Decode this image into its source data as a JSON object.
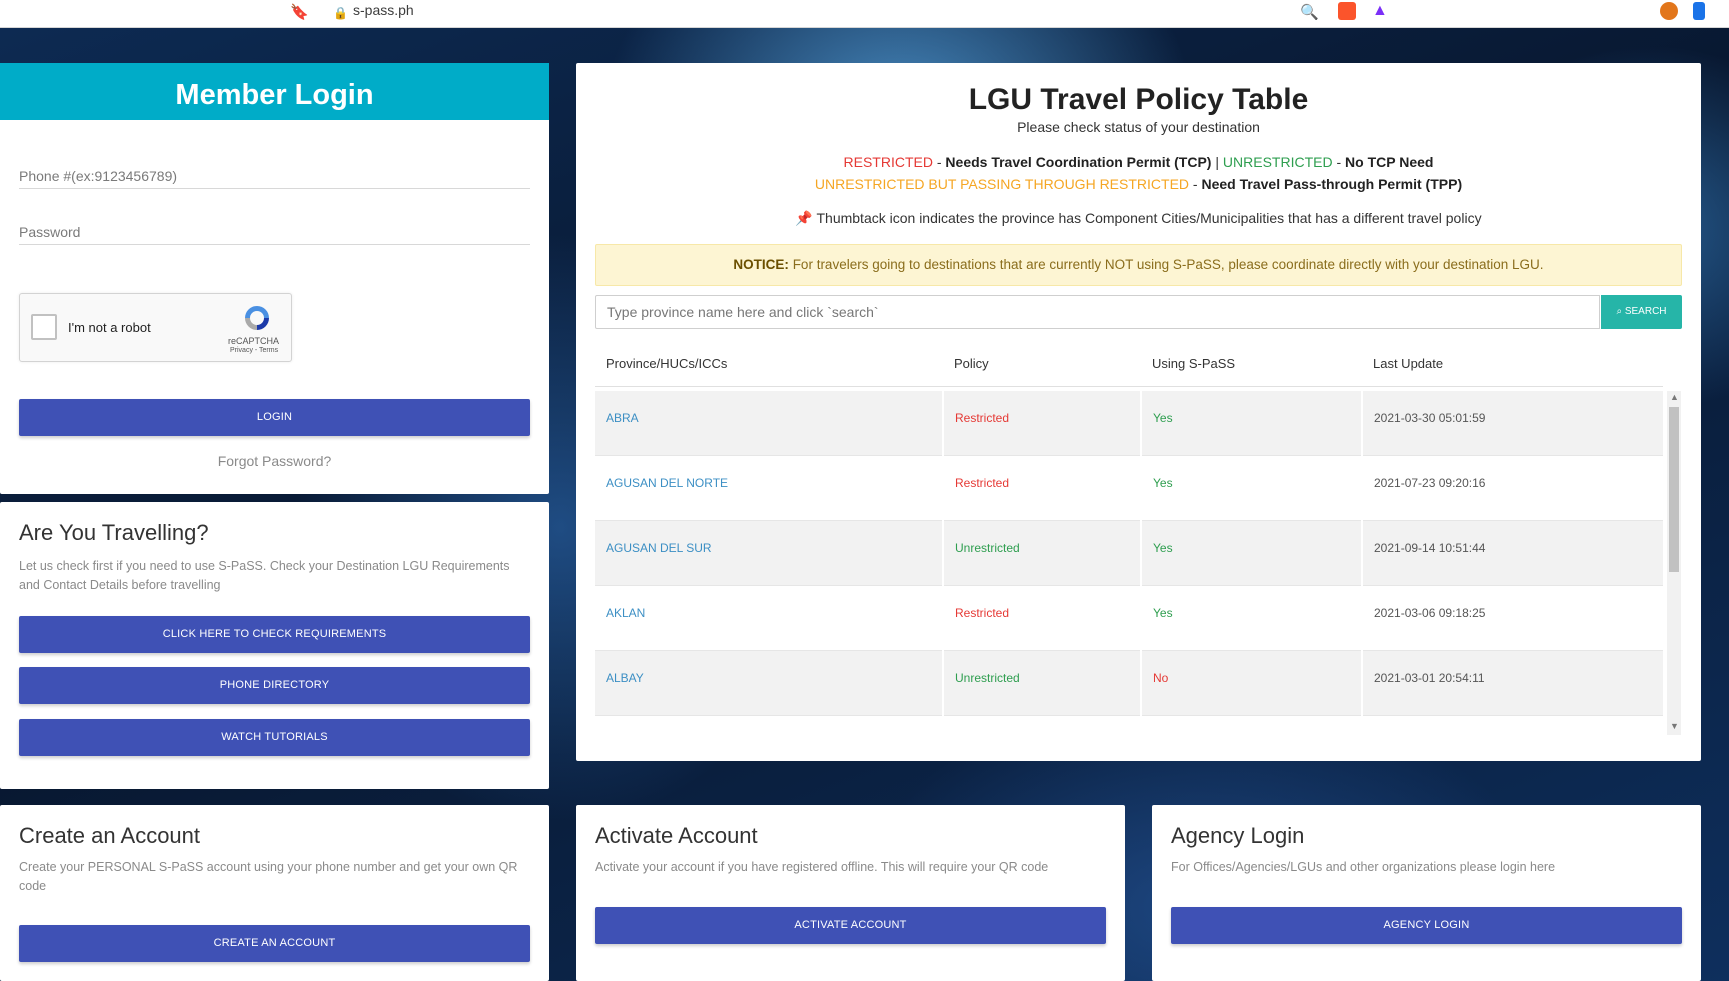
{
  "browser": {
    "url": "s-pass.ph"
  },
  "login": {
    "title": "Member Login",
    "phone_placeholder": "Phone #(ex:9123456789)",
    "password_placeholder": "Password",
    "recaptcha_label": "I'm not a robot",
    "recaptcha_brand": "reCAPTCHA",
    "recaptcha_terms": "Privacy - Terms",
    "login_button": "LOGIN",
    "forgot_password": "Forgot Password?"
  },
  "travel": {
    "title": "Are You Travelling?",
    "text": "Let us check first if you need to use S-PaSS. Check your Destination LGU Requirements and Contact Details before travelling",
    "check_button": "CLICK HERE TO CHECK REQUIREMENTS",
    "phone_button": "PHONE DIRECTORY",
    "tutorials_button": "WATCH TUTORIALS"
  },
  "create": {
    "title": "Create an Account",
    "text": "Create your PERSONAL S-PaSS account using your phone number and get your own QR code",
    "button": "CREATE AN ACCOUNT"
  },
  "activate": {
    "title": "Activate Account",
    "text": "Activate your account if you have registered offline. This will require your QR code",
    "button": "ACTIVATE ACCOUNT"
  },
  "agency": {
    "title": "Agency Login",
    "text": "For Offices/Agencies/LGUs and other organizations please login here",
    "button": "AGENCY LOGIN"
  },
  "policy": {
    "title": "LGU Travel Policy Table",
    "subtitle": "Please check status of your destination",
    "legend_restricted": "RESTRICTED",
    "legend_restricted_desc": "Needs Travel Coordination Permit (TCP)",
    "legend_separator": "|",
    "legend_unrestricted": "UNRESTRICTED",
    "legend_unrestricted_desc": "No TCP Need",
    "legend_passing": "UNRESTRICTED BUT PASSING THROUGH RESTRICTED",
    "legend_passing_desc": "Need Travel Pass-through Permit (TPP)",
    "legend_dash": "-",
    "thumbtack_note": "Thumbtack icon indicates the province has Component Cities/Municipalities that has a different travel policy",
    "notice_label": "NOTICE:",
    "notice_text": "For travelers going to destinations that are currently NOT using S-PaSS, please coordinate directly with your destination LGU.",
    "search_placeholder": "Type province name here and click `search`",
    "search_button": "SEARCH",
    "columns": [
      "Province/HUCs/ICCs",
      "Policy",
      "Using S-PaSS",
      "Last Update"
    ],
    "rows": [
      {
        "province": "ABRA",
        "policy": "Restricted",
        "using": "Yes",
        "updated": "2021-03-30 05:01:59"
      },
      {
        "province": "AGUSAN DEL NORTE",
        "policy": "Restricted",
        "using": "Yes",
        "updated": "2021-07-23 09:20:16"
      },
      {
        "province": "AGUSAN DEL SUR",
        "policy": "Unrestricted",
        "using": "Yes",
        "updated": "2021-09-14 10:51:44"
      },
      {
        "province": "AKLAN",
        "policy": "Restricted",
        "using": "Yes",
        "updated": "2021-03-06 09:18:25"
      },
      {
        "province": "ALBAY",
        "policy": "Unrestricted",
        "using": "No",
        "updated": "2021-03-01 20:54:11"
      }
    ]
  },
  "colors": {
    "header_teal": "#00acc8",
    "button_indigo": "#3f51b5",
    "search_teal": "#26b5a8",
    "restricted_red": "#e53935",
    "unrestricted_green": "#2e9e4f",
    "passing_orange": "#f5a623"
  }
}
